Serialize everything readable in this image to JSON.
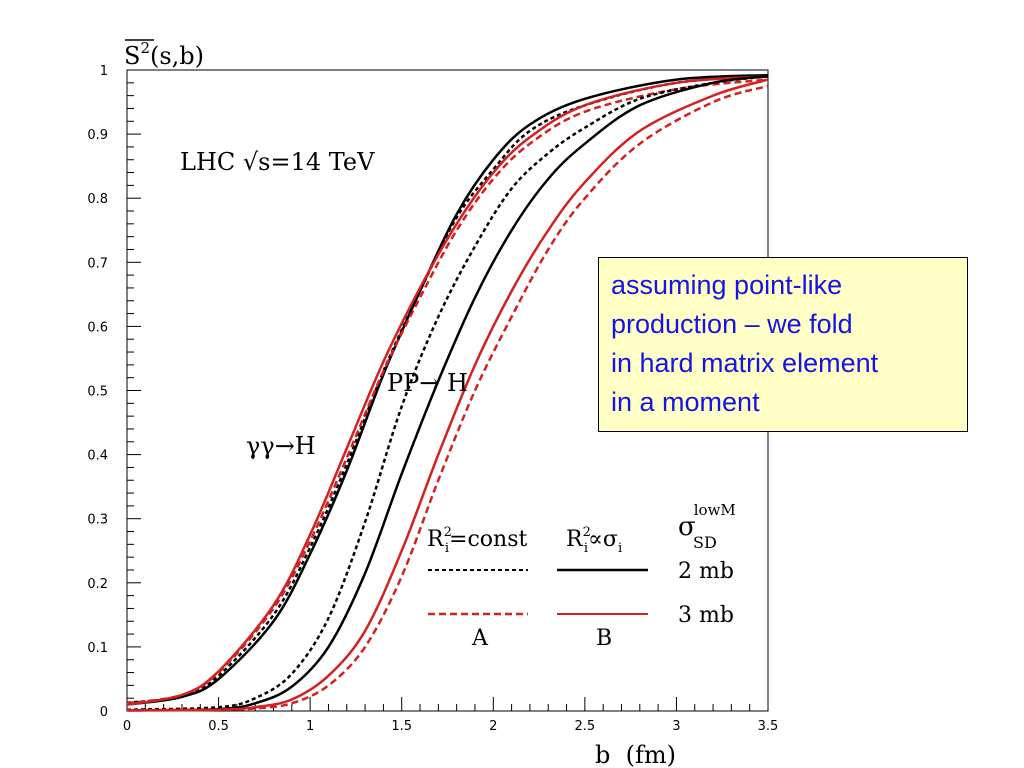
{
  "chart_data": {
    "type": "line",
    "title": "",
    "ylabel": "S²(s,b)",
    "ylabel_parts": {
      "base": "S",
      "sup": "2",
      "args": "(s,b)"
    },
    "xlabel": "b  (fm)",
    "xlim": [
      0,
      3.5
    ],
    "ylim": [
      0,
      1
    ],
    "x_ticks": [
      "0",
      "0.5",
      "1",
      "1.5",
      "2",
      "2.5",
      "3",
      "3.5"
    ],
    "y_ticks": [
      "0",
      "0.1",
      "0.2",
      "0.3",
      "0.4",
      "0.5",
      "0.6",
      "0.7",
      "0.8",
      "0.9",
      "1"
    ],
    "grid": false,
    "annotations": {
      "energy": "LHC √s=14 TeV",
      "gamma": "γγ→H",
      "pomeron": "PP→ H"
    },
    "legend": {
      "col_a": {
        "base": "R",
        "sup": "2",
        "sub": "i",
        "rest": "=const"
      },
      "col_b": {
        "base": "R",
        "sup": "2",
        "sub": "i",
        "rest": "∝σ",
        "sub2": "i"
      },
      "col_c": {
        "base": "σ",
        "sup": "lowM",
        "sub": "SD"
      },
      "row_2mb": "2 mb",
      "row_3mb": "3 mb",
      "label_a": "A",
      "label_b": "B"
    },
    "colors": {
      "black": "#000000",
      "red": "#d42020"
    },
    "series": [
      {
        "group": "γγ→H",
        "model": "A",
        "sigma": "2 mb",
        "color": "#000000",
        "dash": "dashed",
        "points": [
          [
            0,
            0.013
          ],
          [
            0.3,
            0.023
          ],
          [
            0.5,
            0.055
          ],
          [
            0.8,
            0.15
          ],
          [
            1.0,
            0.255
          ],
          [
            1.2,
            0.385
          ],
          [
            1.4,
            0.53
          ],
          [
            1.6,
            0.655
          ],
          [
            1.8,
            0.77
          ],
          [
            2.0,
            0.845
          ],
          [
            2.2,
            0.905
          ],
          [
            2.5,
            0.945
          ],
          [
            3.0,
            0.98
          ],
          [
            3.5,
            0.99
          ]
        ]
      },
      {
        "group": "γγ→H",
        "model": "B",
        "sigma": "2 mb",
        "color": "#000000",
        "dash": "solid",
        "points": [
          [
            0,
            0.01
          ],
          [
            0.3,
            0.022
          ],
          [
            0.5,
            0.05
          ],
          [
            0.8,
            0.14
          ],
          [
            1.0,
            0.245
          ],
          [
            1.2,
            0.375
          ],
          [
            1.4,
            0.525
          ],
          [
            1.6,
            0.655
          ],
          [
            1.8,
            0.775
          ],
          [
            2.0,
            0.86
          ],
          [
            2.2,
            0.915
          ],
          [
            2.5,
            0.955
          ],
          [
            3.0,
            0.985
          ],
          [
            3.5,
            0.992
          ]
        ]
      },
      {
        "group": "γγ→H",
        "model": "A",
        "sigma": "3 mb",
        "color": "#d42020",
        "dash": "dashed",
        "points": [
          [
            0,
            0.012
          ],
          [
            0.3,
            0.025
          ],
          [
            0.5,
            0.06
          ],
          [
            0.8,
            0.16
          ],
          [
            1.0,
            0.265
          ],
          [
            1.2,
            0.395
          ],
          [
            1.4,
            0.53
          ],
          [
            1.6,
            0.645
          ],
          [
            1.8,
            0.75
          ],
          [
            2.0,
            0.83
          ],
          [
            2.2,
            0.885
          ],
          [
            2.5,
            0.935
          ],
          [
            3.0,
            0.97
          ],
          [
            3.5,
            0.985
          ]
        ]
      },
      {
        "group": "γγ→H",
        "model": "B",
        "sigma": "3 mb",
        "color": "#d42020",
        "dash": "solid",
        "points": [
          [
            0,
            0.01
          ],
          [
            0.3,
            0.025
          ],
          [
            0.5,
            0.062
          ],
          [
            0.8,
            0.165
          ],
          [
            1.0,
            0.275
          ],
          [
            1.2,
            0.41
          ],
          [
            1.4,
            0.545
          ],
          [
            1.6,
            0.66
          ],
          [
            1.8,
            0.76
          ],
          [
            2.0,
            0.84
          ],
          [
            2.2,
            0.895
          ],
          [
            2.5,
            0.945
          ],
          [
            3.0,
            0.98
          ],
          [
            3.5,
            0.99
          ]
        ]
      },
      {
        "group": "PP→ H",
        "model": "A",
        "sigma": "2 mb",
        "color": "#000000",
        "dash": "dashed",
        "points": [
          [
            0,
            0.002
          ],
          [
            0.5,
            0.006
          ],
          [
            0.7,
            0.02
          ],
          [
            0.9,
            0.058
          ],
          [
            1.1,
            0.145
          ],
          [
            1.3,
            0.295
          ],
          [
            1.5,
            0.475
          ],
          [
            1.7,
            0.615
          ],
          [
            1.9,
            0.725
          ],
          [
            2.1,
            0.815
          ],
          [
            2.3,
            0.87
          ],
          [
            2.5,
            0.91
          ],
          [
            2.8,
            0.955
          ],
          [
            3.2,
            0.98
          ],
          [
            3.5,
            0.99
          ]
        ]
      },
      {
        "group": "PP→ H",
        "model": "B",
        "sigma": "2 mb",
        "color": "#000000",
        "dash": "solid",
        "points": [
          [
            0,
            0.001
          ],
          [
            0.5,
            0.003
          ],
          [
            0.7,
            0.012
          ],
          [
            0.9,
            0.038
          ],
          [
            1.1,
            0.1
          ],
          [
            1.3,
            0.215
          ],
          [
            1.5,
            0.37
          ],
          [
            1.7,
            0.515
          ],
          [
            1.9,
            0.645
          ],
          [
            2.1,
            0.75
          ],
          [
            2.3,
            0.83
          ],
          [
            2.5,
            0.885
          ],
          [
            2.8,
            0.945
          ],
          [
            3.2,
            0.98
          ],
          [
            3.5,
            0.99
          ]
        ]
      },
      {
        "group": "PP→ H",
        "model": "A",
        "sigma": "3 mb",
        "color": "#d42020",
        "dash": "dashed",
        "points": [
          [
            0,
            0.001
          ],
          [
            0.5,
            0.002
          ],
          [
            0.7,
            0.004
          ],
          [
            0.9,
            0.012
          ],
          [
            1.1,
            0.04
          ],
          [
            1.3,
            0.1
          ],
          [
            1.5,
            0.21
          ],
          [
            1.7,
            0.36
          ],
          [
            1.9,
            0.5
          ],
          [
            2.1,
            0.615
          ],
          [
            2.3,
            0.72
          ],
          [
            2.5,
            0.8
          ],
          [
            2.8,
            0.885
          ],
          [
            3.2,
            0.95
          ],
          [
            3.5,
            0.975
          ]
        ]
      },
      {
        "group": "PP→ H",
        "model": "B",
        "sigma": "3 mb",
        "color": "#d42020",
        "dash": "solid",
        "points": [
          [
            0,
            0.001
          ],
          [
            0.5,
            0.002
          ],
          [
            0.7,
            0.006
          ],
          [
            0.9,
            0.018
          ],
          [
            1.1,
            0.055
          ],
          [
            1.3,
            0.125
          ],
          [
            1.5,
            0.25
          ],
          [
            1.7,
            0.4
          ],
          [
            1.9,
            0.54
          ],
          [
            2.1,
            0.655
          ],
          [
            2.3,
            0.75
          ],
          [
            2.5,
            0.825
          ],
          [
            2.8,
            0.905
          ],
          [
            3.2,
            0.96
          ],
          [
            3.5,
            0.985
          ]
        ]
      }
    ]
  },
  "note": {
    "lines": [
      "assuming point-like",
      "production – we fold",
      "in hard matrix element",
      "in a moment"
    ]
  }
}
